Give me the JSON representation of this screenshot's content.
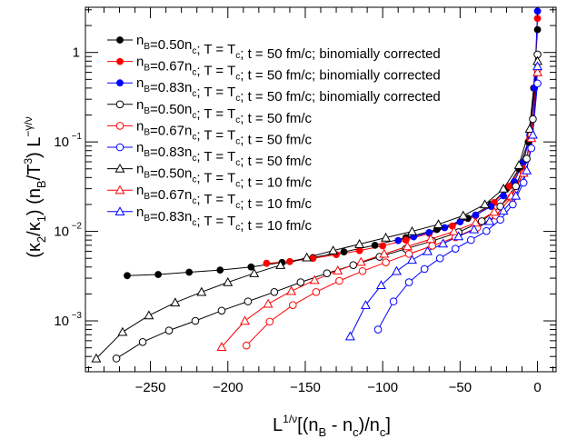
{
  "chart_data": {
    "type": "line",
    "xlabel": "L^{1/ν}[(n_B - n_c)/n_c]",
    "ylabel": "(κ_2/κ_1) (n_B/T^3) L^{-γ/ν}",
    "xlim": [
      -292,
      12
    ],
    "ylim": [
      0.00027,
      3.2
    ],
    "y_scale": "log",
    "x_ticks": [
      -250,
      -200,
      -150,
      -100,
      -50,
      0
    ],
    "x_tick_labels": [
      "−250",
      "−200",
      "−150",
      "−100",
      "−50",
      "0"
    ],
    "y_ticks": [
      0.001,
      0.01,
      0.1,
      1
    ],
    "legend_position": "top-left",
    "series": [
      {
        "name": "n_B=0.50n_c; T = T_c; t = 50 fm/c; binomially corrected",
        "color": "#000000",
        "marker": "filled-circle",
        "x": [
          -265,
          -245,
          -225,
          -205,
          -185,
          -165,
          -145,
          -125,
          -105,
          -85,
          -65,
          -45,
          -30,
          -20,
          -12,
          -6,
          -2.5,
          0
        ],
        "y": [
          0.0032,
          0.0033,
          0.0035,
          0.0037,
          0.004,
          0.0045,
          0.0051,
          0.0059,
          0.007,
          0.0085,
          0.0105,
          0.014,
          0.02,
          0.03,
          0.05,
          0.1,
          0.4,
          1.8
        ]
      },
      {
        "name": "n_B=0.67n_c; T = T_c; t = 50 fm/c; binomially corrected",
        "color": "#ff0000",
        "marker": "filled-circle",
        "x": [
          -175,
          -160,
          -145,
          -130,
          -115,
          -100,
          -85,
          -70,
          -55,
          -40,
          -28,
          -18,
          -10,
          -5,
          -2,
          0
        ],
        "y": [
          0.0044,
          0.0046,
          0.005,
          0.0055,
          0.0061,
          0.0069,
          0.008,
          0.0095,
          0.0115,
          0.015,
          0.021,
          0.032,
          0.055,
          0.11,
          0.4,
          2.4
        ]
      },
      {
        "name": "n_B=0.83n_c; T = T_c; t = 50 fm/c; binomially corrected",
        "color": "#0000ff",
        "marker": "filled-circle",
        "x": [
          -90,
          -80,
          -70,
          -60,
          -50,
          -40,
          -30,
          -22,
          -15,
          -9,
          -5,
          -2,
          0
        ],
        "y": [
          0.0079,
          0.0087,
          0.0097,
          0.011,
          0.0128,
          0.0152,
          0.019,
          0.025,
          0.036,
          0.06,
          0.12,
          0.4,
          2.9
        ]
      },
      {
        "name": "n_B=0.50n_c; T = T_c; t = 50 fm/c",
        "color": "#000000",
        "marker": "open-circle",
        "x": [
          -272,
          -255,
          -238,
          -221,
          -204,
          -187,
          -170,
          -153,
          -136,
          -119,
          -102,
          -85,
          -68,
          -51,
          -36,
          -24,
          -14,
          -7,
          -3,
          0
        ],
        "y": [
          0.00038,
          0.00058,
          0.00078,
          0.001,
          0.0013,
          0.00165,
          0.0021,
          0.0027,
          0.0034,
          0.0042,
          0.0052,
          0.0064,
          0.0078,
          0.0098,
          0.013,
          0.019,
          0.032,
          0.065,
          0.18,
          0.95
        ]
      },
      {
        "name": "n_B=0.67n_c; T = T_c; t = 50 fm/c",
        "color": "#ff0000",
        "marker": "open-circle",
        "x": [
          -188,
          -173,
          -158,
          -143,
          -128,
          -113,
          -98,
          -83,
          -68,
          -53,
          -39,
          -27,
          -17,
          -9,
          -4,
          0
        ],
        "y": [
          0.00053,
          0.00098,
          0.0015,
          0.0021,
          0.0028,
          0.0036,
          0.0045,
          0.0056,
          0.0069,
          0.0086,
          0.011,
          0.015,
          0.024,
          0.045,
          0.12,
          0.65
        ]
      },
      {
        "name": "n_B=0.83n_c; T = T_c; t = 50 fm/c",
        "color": "#0000ff",
        "marker": "open-circle",
        "x": [
          -103,
          -93,
          -83,
          -73,
          -63,
          -53,
          -43,
          -33,
          -24,
          -16,
          -9,
          -4,
          0
        ],
        "y": [
          0.0008,
          0.00165,
          0.0027,
          0.0038,
          0.005,
          0.0064,
          0.008,
          0.0101,
          0.0135,
          0.02,
          0.035,
          0.085,
          0.45
        ]
      },
      {
        "name": "n_B=0.50n_c; T = T_c; t = 10 fm/c",
        "color": "#000000",
        "marker": "open-triangle",
        "x": [
          -285,
          -268,
          -251,
          -234,
          -217,
          -200,
          -183,
          -166,
          -149,
          -132,
          -115,
          -98,
          -81,
          -64,
          -48,
          -34,
          -22,
          -12,
          -5,
          0
        ],
        "y": [
          0.00038,
          0.00075,
          0.00115,
          0.0016,
          0.0021,
          0.0027,
          0.0034,
          0.0042,
          0.0051,
          0.0061,
          0.0072,
          0.0085,
          0.01,
          0.012,
          0.015,
          0.02,
          0.03,
          0.055,
          0.14,
          0.8
        ]
      },
      {
        "name": "n_B=0.67n_c; T = T_c; t = 10 fm/c",
        "color": "#ff0000",
        "marker": "open-triangle",
        "x": [
          -204,
          -189,
          -174,
          -159,
          -144,
          -129,
          -114,
          -99,
          -84,
          -69,
          -54,
          -40,
          -28,
          -17,
          -9,
          -4,
          0
        ],
        "y": [
          0.00051,
          0.001,
          0.00155,
          0.00215,
          0.00285,
          0.00365,
          0.00455,
          0.0056,
          0.0068,
          0.0082,
          0.01,
          0.0125,
          0.0165,
          0.025,
          0.045,
          0.11,
          0.6
        ]
      },
      {
        "name": "n_B=0.83n_c; T = T_c; t = 10 fm/c",
        "color": "#0000ff",
        "marker": "open-triangle",
        "x": [
          -121,
          -111,
          -101,
          -91,
          -81,
          -71,
          -61,
          -51,
          -41,
          -31,
          -22,
          -14,
          -7,
          -3,
          0
        ],
        "y": [
          0.00067,
          0.0015,
          0.0025,
          0.0036,
          0.0048,
          0.006,
          0.0073,
          0.0088,
          0.0105,
          0.013,
          0.017,
          0.025,
          0.048,
          0.12,
          0.7
        ]
      }
    ]
  }
}
